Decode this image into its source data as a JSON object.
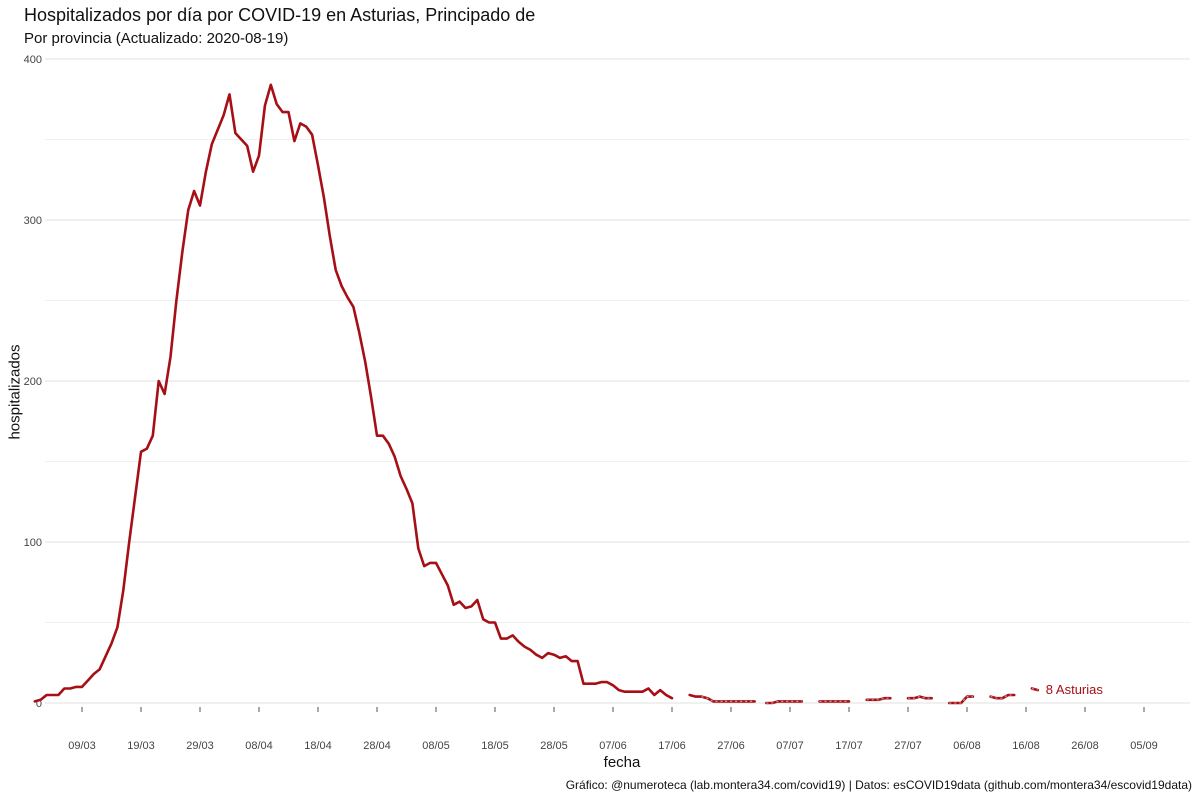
{
  "title": "Hospitalizados por día por COVID-19 en Asturias, Principado de",
  "subtitle": "Por provincia  (Actualizado: 2020-08-19)",
  "caption": "Gráfico: @numeroteca (lab.montera34.com/covid19) | Datos: esCOVID19data (github.com/montera34/escovid19data)",
  "colors": {
    "series": "#a50f15",
    "grid": "#e8e8e8",
    "text": "#444444"
  },
  "chart_data": {
    "type": "line",
    "xlabel": "fecha",
    "ylabel": "hospitalizados",
    "x_start": "2020-03-01",
    "xlim": [
      "2020-03-01",
      "2020-09-10"
    ],
    "ylim": [
      -20,
      400
    ],
    "yticks": [
      0,
      100,
      200,
      300,
      400
    ],
    "y_minor_gridlines": [
      50,
      150,
      250,
      350
    ],
    "grid": true,
    "xticks": [
      {
        "label": "09/03",
        "date": "2020-03-09"
      },
      {
        "label": "19/03",
        "date": "2020-03-19"
      },
      {
        "label": "29/03",
        "date": "2020-03-29"
      },
      {
        "label": "08/04",
        "date": "2020-04-08"
      },
      {
        "label": "18/04",
        "date": "2020-04-18"
      },
      {
        "label": "28/04",
        "date": "2020-04-28"
      },
      {
        "label": "08/05",
        "date": "2020-05-08"
      },
      {
        "label": "18/05",
        "date": "2020-05-18"
      },
      {
        "label": "28/05",
        "date": "2020-05-28"
      },
      {
        "label": "07/06",
        "date": "2020-06-07"
      },
      {
        "label": "17/06",
        "date": "2020-06-17"
      },
      {
        "label": "27/06",
        "date": "2020-06-27"
      },
      {
        "label": "07/07",
        "date": "2020-07-07"
      },
      {
        "label": "17/07",
        "date": "2020-07-17"
      },
      {
        "label": "27/07",
        "date": "2020-07-27"
      },
      {
        "label": "06/08",
        "date": "2020-08-06"
      },
      {
        "label": "16/08",
        "date": "2020-08-16"
      },
      {
        "label": "26/08",
        "date": "2020-08-26"
      },
      {
        "label": "05/09",
        "date": "2020-09-05"
      }
    ],
    "series": [
      {
        "name": "Asturias",
        "end_label": "8 Asturias",
        "values": [
          1,
          2,
          5,
          5,
          5,
          9,
          9,
          10,
          10,
          14,
          18,
          21,
          29,
          37,
          47,
          70,
          100,
          128,
          156,
          158,
          166,
          200,
          192,
          215,
          250,
          280,
          306,
          318,
          309,
          330,
          347,
          356,
          365,
          378,
          354,
          350,
          346,
          330,
          340,
          371,
          384,
          372,
          367,
          367,
          349,
          360,
          358,
          353,
          334,
          314,
          290,
          269,
          259,
          252,
          246,
          230,
          212,
          190,
          166,
          166,
          161,
          153,
          141,
          133,
          124,
          96,
          85,
          87,
          87,
          80,
          73,
          61,
          63,
          59,
          60,
          64,
          52,
          50,
          50,
          40,
          40,
          42,
          38,
          35,
          33,
          30,
          28,
          31,
          30,
          28,
          29,
          26,
          26,
          12,
          12,
          12,
          13,
          13,
          11,
          8,
          7,
          7,
          7,
          7,
          9,
          5,
          8,
          5,
          3,
          null,
          null,
          5,
          4,
          4,
          3,
          1,
          1,
          1,
          1,
          1,
          1,
          1,
          1,
          null,
          0,
          0,
          1,
          1,
          1,
          1,
          1,
          null,
          null,
          1,
          1,
          1,
          1,
          1,
          1,
          null,
          null,
          2,
          2,
          2,
          3,
          3,
          null,
          null,
          3,
          3,
          4,
          3,
          3,
          null,
          null,
          0,
          0,
          0,
          4,
          4,
          null,
          null,
          4,
          3,
          3,
          5,
          5,
          null,
          null,
          9,
          8
        ]
      }
    ],
    "dashed_segments": [
      {
        "start": "2020-06-22",
        "end": "2020-06-26"
      },
      {
        "start": "2020-06-26",
        "end": "2020-07-02"
      },
      {
        "start": "2020-07-03",
        "end": "2020-07-10"
      },
      {
        "start": "2020-07-12",
        "end": "2020-07-17"
      },
      {
        "start": "2020-07-20",
        "end": "2020-07-24"
      },
      {
        "start": "2020-07-27",
        "end": "2020-07-31"
      },
      {
        "start": "2020-08-03",
        "end": "2020-08-08"
      },
      {
        "start": "2020-08-10",
        "end": "2020-08-14"
      },
      {
        "start": "2020-08-17",
        "end": "2020-08-18"
      }
    ]
  }
}
